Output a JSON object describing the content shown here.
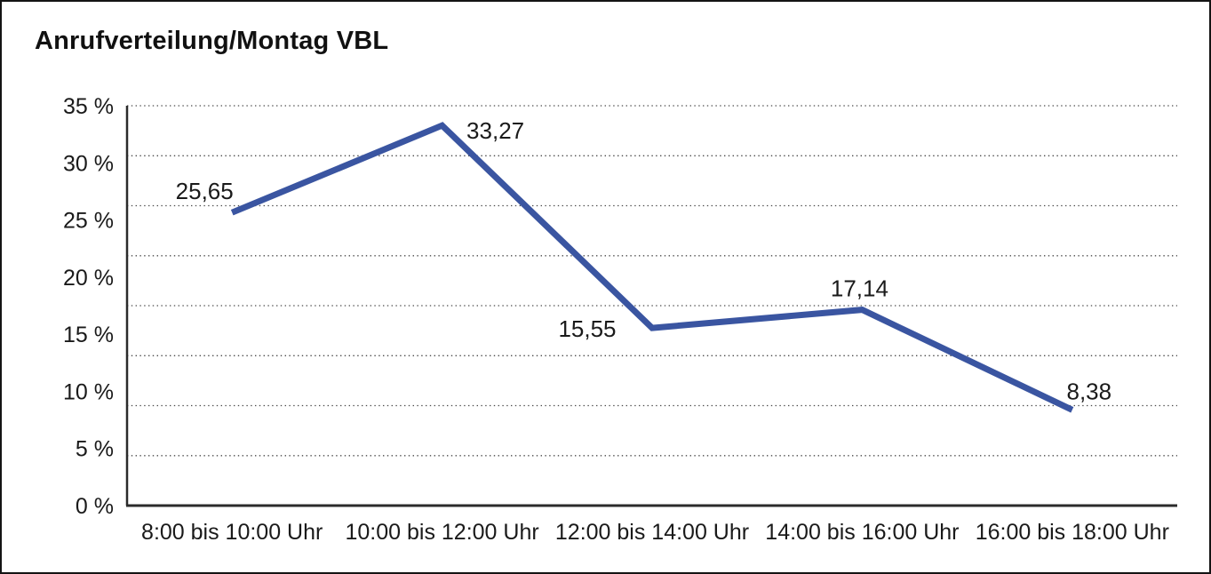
{
  "title": "Anrufverteilung/Montag VBL",
  "chart_data": {
    "type": "line",
    "title": "Anrufverteilung/Montag VBL",
    "categories": [
      "8:00 bis 10:00 Uhr",
      "10:00 bis 12:00 Uhr",
      "12:00 bis 14:00 Uhr",
      "14:00 bis 16:00 Uhr",
      "16:00 bis 18:00 Uhr"
    ],
    "values": [
      25.65,
      33.27,
      15.55,
      17.14,
      8.38
    ],
    "point_labels": [
      "25,65",
      "33,27",
      "15,55",
      "17,14",
      "8,38"
    ],
    "xlabel": "",
    "ylabel": "",
    "ylim": [
      0,
      35
    ],
    "y_tick_values": [
      0,
      5,
      10,
      15,
      20,
      25,
      30,
      35
    ],
    "y_tick_labels": [
      "0 %",
      "5 %",
      "10 %",
      "15 %",
      "20 %",
      "25 %",
      "30 %",
      "35 %"
    ],
    "gridline_values": [
      4.375,
      8.75,
      13.125,
      17.5,
      21.875,
      26.25,
      30.625,
      35
    ],
    "grid_style": "dotted horizontal",
    "legend": "none",
    "line_color": "#3A55A1",
    "axis_color": "#2b2b2b",
    "text_color": "#1a1a1a",
    "gridline_color": "#4a4a4a"
  }
}
